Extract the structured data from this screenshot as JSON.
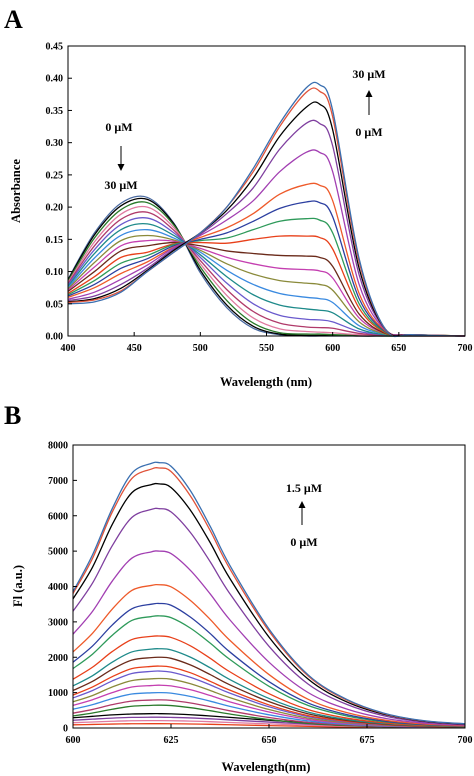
{
  "panels": [
    {
      "label": "A",
      "xlabel": "Wavelength (nm)",
      "ylabel": "Absorbance",
      "xticks": [
        "400",
        "450",
        "500",
        "550",
        "600",
        "650",
        "700"
      ],
      "yticks": [
        "0.00",
        "0.05",
        "0.10",
        "0.15",
        "0.20",
        "0.25",
        "0.30",
        "0.35",
        "0.40",
        "0.45"
      ],
      "annotations": [
        {
          "text": "0 μM"
        },
        {
          "text": "30 μM"
        },
        {
          "text": "30 μM"
        },
        {
          "text": "0 μM"
        }
      ]
    },
    {
      "label": "B",
      "xlabel": "Wavelength(nm)",
      "ylabel": "Fl (a.u.)",
      "xticks": [
        "600",
        "625",
        "650",
        "675",
        "700"
      ],
      "yticks": [
        "0",
        "1000",
        "2000",
        "3000",
        "4000",
        "5000",
        "6000",
        "7000",
        "8000"
      ],
      "annotations": [
        {
          "text": "1.5 μM"
        },
        {
          "text": "0 μM"
        }
      ]
    }
  ],
  "chart_data": [
    {
      "type": "line",
      "panel": "A",
      "xlabel": "Wavelength (nm)",
      "ylabel": "Absorbance",
      "xlim": [
        400,
        700
      ],
      "ylim": [
        0,
        0.45
      ],
      "x": [
        400,
        420,
        440,
        460,
        480,
        500,
        520,
        540,
        560,
        580,
        590,
        600,
        620,
        640,
        660,
        700
      ],
      "series": [
        {
          "color": "#3a6fb0",
          "values": [
            0.05,
            0.053,
            0.068,
            0.1,
            0.13,
            0.16,
            0.2,
            0.26,
            0.33,
            0.385,
            0.39,
            0.35,
            0.12,
            0.01,
            0.002,
            0.0
          ]
        },
        {
          "color": "#e0533a",
          "values": [
            0.052,
            0.056,
            0.07,
            0.1,
            0.13,
            0.16,
            0.2,
            0.255,
            0.325,
            0.378,
            0.38,
            0.34,
            0.115,
            0.01,
            0.002,
            0.0
          ]
        },
        {
          "color": "#000000",
          "values": [
            0.053,
            0.058,
            0.074,
            0.102,
            0.133,
            0.16,
            0.195,
            0.245,
            0.31,
            0.355,
            0.36,
            0.32,
            0.105,
            0.01,
            0.002,
            0.0
          ]
        },
        {
          "color": "#7f3f9f",
          "values": [
            0.055,
            0.062,
            0.08,
            0.105,
            0.135,
            0.158,
            0.19,
            0.23,
            0.29,
            0.33,
            0.33,
            0.295,
            0.095,
            0.01,
            0.002,
            0.0
          ]
        },
        {
          "color": "#a23fb2",
          "values": [
            0.057,
            0.068,
            0.088,
            0.11,
            0.137,
            0.156,
            0.18,
            0.21,
            0.255,
            0.285,
            0.285,
            0.255,
            0.08,
            0.009,
            0.002,
            0.0
          ]
        },
        {
          "color": "#ee5a2a",
          "values": [
            0.06,
            0.075,
            0.097,
            0.115,
            0.138,
            0.153,
            0.168,
            0.19,
            0.22,
            0.235,
            0.234,
            0.21,
            0.066,
            0.008,
            0.002,
            0.0
          ]
        },
        {
          "color": "#2c3fa0",
          "values": [
            0.062,
            0.08,
            0.105,
            0.12,
            0.14,
            0.15,
            0.16,
            0.178,
            0.198,
            0.208,
            0.207,
            0.185,
            0.058,
            0.007,
            0.002,
            0.0
          ]
        },
        {
          "color": "#2e9a5a",
          "values": [
            0.064,
            0.086,
            0.113,
            0.125,
            0.142,
            0.148,
            0.152,
            0.165,
            0.178,
            0.182,
            0.18,
            0.16,
            0.05,
            0.006,
            0.002,
            0.0
          ]
        },
        {
          "color": "#e8401a",
          "values": [
            0.066,
            0.092,
            0.122,
            0.13,
            0.143,
            0.145,
            0.144,
            0.15,
            0.155,
            0.155,
            0.153,
            0.135,
            0.043,
            0.005,
            0.002,
            0.0
          ]
        },
        {
          "color": "#6a2a1a",
          "values": [
            0.069,
            0.1,
            0.132,
            0.14,
            0.145,
            0.14,
            0.132,
            0.128,
            0.125,
            0.124,
            0.122,
            0.108,
            0.034,
            0.004,
            0.002,
            0.0
          ]
        },
        {
          "color": "#c43fb0",
          "values": [
            0.071,
            0.107,
            0.14,
            0.148,
            0.147,
            0.136,
            0.122,
            0.112,
            0.105,
            0.103,
            0.101,
            0.09,
            0.028,
            0.004,
            0.002,
            0.0
          ]
        },
        {
          "color": "#8a8a3a",
          "values": [
            0.073,
            0.114,
            0.148,
            0.156,
            0.149,
            0.133,
            0.112,
            0.096,
            0.086,
            0.082,
            0.08,
            0.071,
            0.022,
            0.003,
            0.002,
            0.0
          ]
        },
        {
          "color": "#3a8ae0",
          "values": [
            0.075,
            0.121,
            0.156,
            0.165,
            0.152,
            0.13,
            0.102,
            0.08,
            0.066,
            0.06,
            0.058,
            0.052,
            0.016,
            0.003,
            0.001,
            0.0
          ]
        },
        {
          "color": "#1e8a8a",
          "values": [
            0.077,
            0.128,
            0.165,
            0.174,
            0.156,
            0.126,
            0.092,
            0.064,
            0.048,
            0.042,
            0.04,
            0.036,
            0.011,
            0.002,
            0.001,
            0.0
          ]
        },
        {
          "color": "#6a5acd",
          "values": [
            0.079,
            0.134,
            0.173,
            0.183,
            0.16,
            0.122,
            0.082,
            0.05,
            0.032,
            0.026,
            0.025,
            0.022,
            0.007,
            0.002,
            0.001,
            0.0
          ]
        },
        {
          "color": "#b03a6a",
          "values": [
            0.081,
            0.14,
            0.181,
            0.192,
            0.164,
            0.117,
            0.072,
            0.038,
            0.02,
            0.014,
            0.013,
            0.012,
            0.004,
            0.001,
            0.001,
            0.0
          ]
        },
        {
          "color": "#e07aa0",
          "values": [
            0.083,
            0.146,
            0.189,
            0.2,
            0.168,
            0.112,
            0.063,
            0.028,
            0.011,
            0.007,
            0.006,
            0.005,
            0.002,
            0.001,
            0.0,
            0.0
          ]
        },
        {
          "color": "#2a7a2a",
          "values": [
            0.085,
            0.152,
            0.196,
            0.207,
            0.172,
            0.107,
            0.055,
            0.02,
            0.005,
            0.003,
            0.003,
            0.002,
            0.001,
            0.0,
            0.0,
            0.0
          ]
        },
        {
          "color": "#000000",
          "values": [
            0.087,
            0.157,
            0.202,
            0.212,
            0.174,
            0.102,
            0.048,
            0.015,
            0.003,
            0.001,
            0.001,
            0.001,
            0.0,
            0.0,
            0.0,
            0.0
          ]
        },
        {
          "color": "#4a6aa0",
          "values": [
            0.088,
            0.16,
            0.206,
            0.215,
            0.175,
            0.098,
            0.044,
            0.012,
            0.002,
            0.0,
            0.0,
            0.0,
            0.0,
            0.0,
            0.0,
            0.0
          ]
        }
      ]
    },
    {
      "type": "line",
      "panel": "B",
      "xlabel": "Wavelength(nm)",
      "ylabel": "Fl (a.u.)",
      "xlim": [
        600,
        700
      ],
      "ylim": [
        0,
        8000
      ],
      "x": [
        600,
        605,
        610,
        615,
        620,
        622,
        625,
        630,
        635,
        640,
        650,
        660,
        670,
        680,
        690,
        700
      ],
      "series": [
        {
          "color": "#3a6fb0",
          "values": [
            3850,
            4900,
            6200,
            7200,
            7480,
            7500,
            7400,
            6700,
            5700,
            4600,
            2800,
            1500,
            800,
            400,
            200,
            120
          ]
        },
        {
          "color": "#e0533a",
          "values": [
            3800,
            4800,
            6100,
            7050,
            7320,
            7350,
            7250,
            6550,
            5580,
            4500,
            2740,
            1470,
            780,
            390,
            195,
            118
          ]
        },
        {
          "color": "#000000",
          "values": [
            3650,
            4550,
            5750,
            6650,
            6880,
            6900,
            6800,
            6150,
            5240,
            4230,
            2570,
            1380,
            730,
            370,
            185,
            110
          ]
        },
        {
          "color": "#7f3f9f",
          "values": [
            3300,
            4100,
            5150,
            5950,
            6180,
            6200,
            6110,
            5520,
            4700,
            3800,
            2310,
            1240,
            660,
            330,
            165,
            100
          ]
        },
        {
          "color": "#a23fb2",
          "values": [
            2650,
            3300,
            4150,
            4800,
            4980,
            5000,
            4930,
            4450,
            3790,
            3060,
            1860,
            1000,
            530,
            265,
            135,
            80
          ]
        },
        {
          "color": "#ee5a2a",
          "values": [
            2150,
            2680,
            3360,
            3890,
            4030,
            4050,
            3990,
            3600,
            3070,
            2480,
            1510,
            810,
            430,
            215,
            110,
            65
          ]
        },
        {
          "color": "#2c3fa0",
          "values": [
            1860,
            2320,
            2910,
            3370,
            3500,
            3520,
            3470,
            3130,
            2670,
            2150,
            1310,
            705,
            375,
            188,
            95,
            57
          ]
        },
        {
          "color": "#2e9a5a",
          "values": [
            1680,
            2090,
            2620,
            3040,
            3150,
            3170,
            3120,
            2820,
            2400,
            1940,
            1180,
            635,
            337,
            170,
            86,
            51
          ]
        },
        {
          "color": "#e8401a",
          "values": [
            1380,
            1720,
            2160,
            2500,
            2590,
            2600,
            2560,
            2320,
            1970,
            1590,
            970,
            520,
            277,
            140,
            70,
            42
          ]
        },
        {
          "color": "#1e8a8a",
          "values": [
            1190,
            1480,
            1860,
            2150,
            2230,
            2240,
            2210,
            2000,
            1700,
            1370,
            835,
            450,
            239,
            120,
            61,
            36
          ]
        },
        {
          "color": "#6a2a1a",
          "values": [
            1060,
            1320,
            1660,
            1920,
            1990,
            2000,
            1970,
            1780,
            1510,
            1220,
            745,
            400,
            213,
            107,
            54,
            32
          ]
        },
        {
          "color": "#e8401a",
          "values": [
            930,
            1160,
            1450,
            1680,
            1740,
            1750,
            1720,
            1560,
            1320,
            1070,
            652,
            350,
            187,
            94,
            47,
            28
          ]
        },
        {
          "color": "#6a5acd",
          "values": [
            850,
            1060,
            1330,
            1540,
            1600,
            1610,
            1580,
            1430,
            1220,
            985,
            600,
            322,
            172,
            86,
            43,
            26
          ]
        },
        {
          "color": "#8a8a3a",
          "values": [
            740,
            920,
            1160,
            1340,
            1390,
            1400,
            1380,
            1250,
            1060,
            857,
            522,
            280,
            150,
            75,
            38,
            23
          ]
        },
        {
          "color": "#c43fb0",
          "values": [
            640,
            800,
            1000,
            1160,
            1200,
            1210,
            1190,
            1080,
            918,
            740,
            451,
            242,
            129,
            65,
            33,
            20
          ]
        },
        {
          "color": "#3a8ae0",
          "values": [
            530,
            660,
            830,
            960,
            995,
            1000,
            985,
            890,
            758,
            612,
            373,
            200,
            107,
            54,
            27,
            16
          ]
        },
        {
          "color": "#b03a6a",
          "values": [
            420,
            525,
            660,
            760,
            790,
            795,
            782,
            707,
            602,
            486,
            296,
            159,
            85,
            43,
            21,
            13
          ]
        },
        {
          "color": "#2a7a2a",
          "values": [
            340,
            425,
            530,
            615,
            640,
            645,
            635,
            574,
            489,
            395,
            240,
            129,
            69,
            35,
            17,
            10
          ]
        },
        {
          "color": "#000000",
          "values": [
            290,
            330,
            370,
            395,
            405,
            405,
            400,
            375,
            340,
            300,
            220,
            150,
            95,
            60,
            38,
            25
          ]
        },
        {
          "color": "#7f3f9f",
          "values": [
            220,
            250,
            280,
            300,
            305,
            305,
            300,
            285,
            260,
            228,
            168,
            115,
            72,
            46,
            30,
            20
          ]
        },
        {
          "color": "#e07aa0",
          "values": [
            150,
            170,
            190,
            205,
            208,
            208,
            205,
            195,
            178,
            156,
            116,
            80,
            50,
            32,
            21,
            14
          ]
        },
        {
          "color": "#e8401a",
          "values": [
            90,
            100,
            112,
            120,
            122,
            122,
            120,
            114,
            104,
            92,
            68,
            47,
            30,
            19,
            12,
            8
          ]
        }
      ]
    }
  ]
}
